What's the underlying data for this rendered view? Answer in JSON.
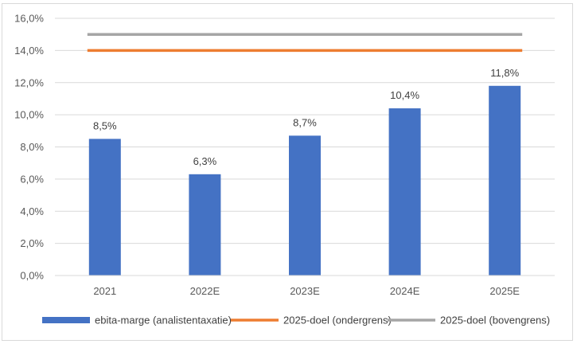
{
  "chart_data": {
    "type": "bar",
    "categories": [
      "2021",
      "2022E",
      "2023E",
      "2024E",
      "2025E"
    ],
    "series": [
      {
        "name": "ebita-marge (analistentaxatie)",
        "type": "bar",
        "color": "#4472C4",
        "values": [
          8.5,
          6.3,
          8.7,
          10.4,
          11.8
        ],
        "labels": [
          "8,5%",
          "6,3%",
          "8,7%",
          "10,4%",
          "11,8%"
        ]
      },
      {
        "name": "2025-doel (ondergrens)",
        "type": "line",
        "color": "#ED7D31",
        "values": [
          14.0,
          14.0,
          14.0,
          14.0,
          14.0
        ]
      },
      {
        "name": "2025-doel (bovengrens)",
        "type": "line",
        "color": "#A5A5A5",
        "values": [
          15.0,
          15.0,
          15.0,
          15.0,
          15.0
        ]
      }
    ],
    "ylim": [
      0,
      16
    ],
    "yticks": [
      0,
      2,
      4,
      6,
      8,
      10,
      12,
      14,
      16
    ],
    "ytick_labels": [
      "0,0%",
      "2,0%",
      "4,0%",
      "6,0%",
      "8,0%",
      "10,0%",
      "12,0%",
      "14,0%",
      "16,0%"
    ],
    "grid": true,
    "legend_position": "bottom"
  }
}
